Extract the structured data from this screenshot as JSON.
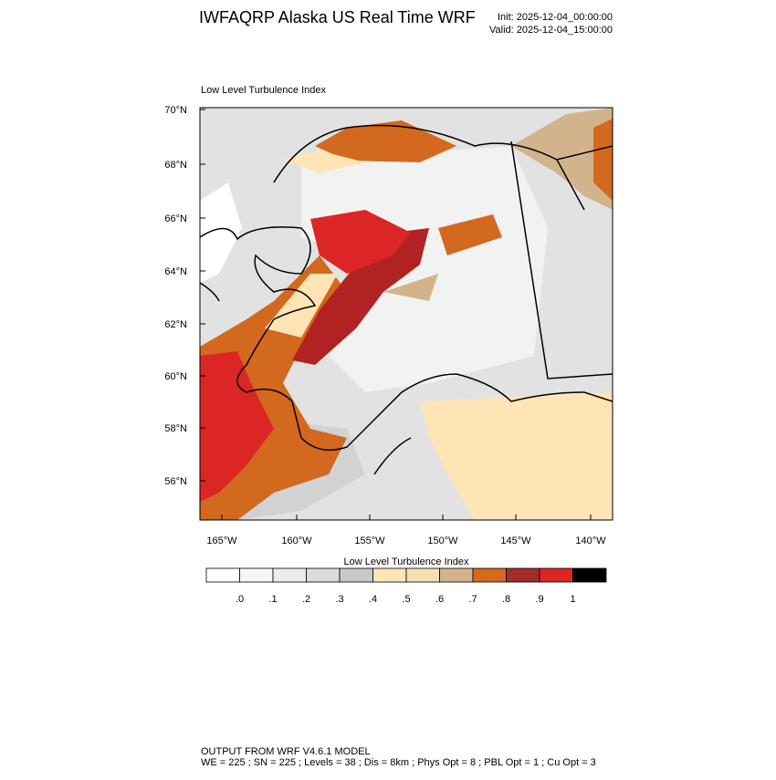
{
  "header": {
    "title": "IWFAQRP Alaska US Real Time WRF",
    "init": "Init: 2025-12-04_00:00:00",
    "valid": "Valid: 2025-12-04_15:00:00"
  },
  "map": {
    "title": "Low Level Turbulence Index",
    "lat_labels": [
      "70°N",
      "68°N",
      "66°N",
      "64°N",
      "62°N",
      "60°N",
      "58°N",
      "56°N"
    ],
    "lon_labels": [
      "165°W",
      "160°W",
      "155°W",
      "150°W",
      "145°W",
      "140°W"
    ]
  },
  "colorbar": {
    "title": "Low Level Turbulence Index",
    "colors": [
      "#ffffff",
      "#f5f5f5",
      "#ebebeb",
      "#dcdcdc",
      "#c8c8c8",
      "#ffe4b5",
      "#f5deb3",
      "#d2b48c",
      "#d2691e",
      "#a52a2a",
      "#dc2626",
      "#000000"
    ],
    "labels": [
      ".0",
      ".1",
      ".2",
      ".3",
      ".4",
      ".5",
      ".6",
      ".7",
      ".8",
      ".9",
      "1"
    ]
  },
  "footer": {
    "line1": "OUTPUT FROM WRF V4.6.1 MODEL",
    "line2": "WE = 225 ; SN = 225 ; Levels = 38 ; Dis = 8km ; Phys Opt = 8 ; PBL Opt = 1 ; Cu Opt = 3"
  }
}
